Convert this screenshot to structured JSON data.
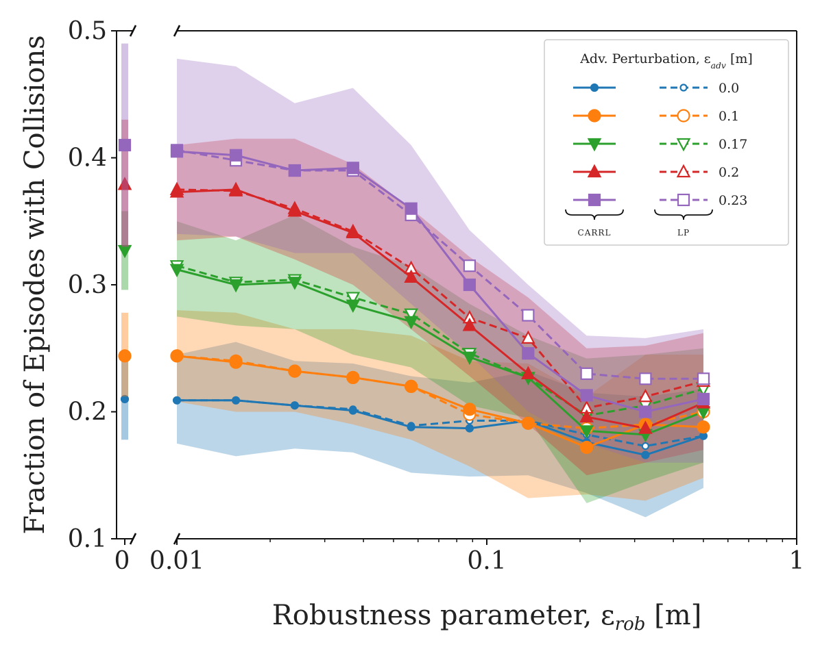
{
  "chart_data": {
    "type": "line",
    "xscale": "log",
    "xlabel": "Robustness parameter, εrob [m]",
    "ylabel": "Fraction of Episodes with Collisions",
    "xlim": [
      0.01,
      1
    ],
    "ylim": [
      0.1,
      0.5
    ],
    "x_ticks": [
      {
        "value": 0.01,
        "label": "0.01"
      },
      {
        "value": 0.1,
        "label": "0.1"
      },
      {
        "value": 1,
        "label": "1"
      }
    ],
    "y_ticks": [
      {
        "value": 0.1,
        "label": "0.1"
      },
      {
        "value": 0.2,
        "label": "0.2"
      },
      {
        "value": 0.3,
        "label": "0.3"
      },
      {
        "value": 0.4,
        "label": "0.4"
      },
      {
        "value": 0.5,
        "label": "0.5"
      }
    ],
    "zero_panel_tick": "0",
    "x": [
      0.01,
      0.0155,
      0.024,
      0.037,
      0.057,
      0.088,
      0.136,
      0.21,
      0.325,
      0.5
    ],
    "legend": {
      "title": "Adv. Perturbation, εadv [m]",
      "group_labels": [
        "CARRL",
        "LP"
      ],
      "placement": "top-right"
    },
    "series": [
      {
        "name": "0.0",
        "color": "#1f77b4",
        "marker": "small-dot",
        "zero_value": 0.21,
        "zero_lo": 0.178,
        "zero_hi": 0.242,
        "carrl": [
          0.209,
          0.209,
          0.205,
          0.201,
          0.188,
          0.187,
          0.193,
          0.176,
          0.166,
          0.181
        ],
        "lp": [
          0.209,
          0.209,
          0.205,
          0.202,
          0.189,
          0.193,
          0.193,
          0.182,
          0.173,
          0.181
        ],
        "lo": [
          0.175,
          0.165,
          0.171,
          0.168,
          0.152,
          0.149,
          0.15,
          0.136,
          0.117,
          0.14
        ],
        "hi": [
          0.245,
          0.255,
          0.24,
          0.238,
          0.228,
          0.223,
          0.232,
          0.215,
          0.212,
          0.218
        ]
      },
      {
        "name": "0.1",
        "color": "#ff7f0e",
        "marker": "circle",
        "zero_value": 0.244,
        "zero_lo": 0.212,
        "zero_hi": 0.278,
        "carrl": [
          0.244,
          0.239,
          0.232,
          0.227,
          0.22,
          0.202,
          0.191,
          0.172,
          0.19,
          0.188
        ],
        "lp": [
          0.244,
          0.24,
          0.232,
          0.227,
          0.22,
          0.198,
          0.191,
          0.187,
          0.19,
          0.2
        ],
        "lo": [
          0.208,
          0.2,
          0.2,
          0.19,
          0.178,
          0.157,
          0.132,
          0.135,
          0.13,
          0.148
        ],
        "hi": [
          0.28,
          0.278,
          0.265,
          0.265,
          0.26,
          0.24,
          0.238,
          0.212,
          0.245,
          0.245
        ]
      },
      {
        "name": "0.17",
        "color": "#2ca02c",
        "marker": "triangle-down",
        "zero_value": 0.327,
        "zero_lo": 0.296,
        "zero_hi": 0.358,
        "carrl": [
          0.312,
          0.3,
          0.302,
          0.284,
          0.271,
          0.243,
          0.227,
          0.185,
          0.182,
          0.2
        ],
        "lp": [
          0.315,
          0.302,
          0.304,
          0.29,
          0.277,
          0.246,
          0.227,
          0.197,
          0.205,
          0.218
        ],
        "lo": [
          0.275,
          0.268,
          0.265,
          0.245,
          0.235,
          0.205,
          0.195,
          0.128,
          0.145,
          0.16
        ],
        "hi": [
          0.35,
          0.335,
          0.355,
          0.33,
          0.315,
          0.285,
          0.26,
          0.242,
          0.245,
          0.25
        ]
      },
      {
        "name": "0.2",
        "color": "#d62728",
        "marker": "triangle-up",
        "zero_value": 0.379,
        "zero_lo": 0.33,
        "zero_hi": 0.43,
        "carrl": [
          0.373,
          0.375,
          0.358,
          0.341,
          0.306,
          0.268,
          0.23,
          0.196,
          0.187,
          0.207
        ],
        "lp": [
          0.375,
          0.374,
          0.36,
          0.342,
          0.313,
          0.274,
          0.258,
          0.203,
          0.212,
          0.224
        ],
        "lo": [
          0.335,
          0.338,
          0.32,
          0.3,
          0.265,
          0.228,
          0.19,
          0.15,
          0.16,
          0.17
        ],
        "hi": [
          0.41,
          0.415,
          0.415,
          0.395,
          0.36,
          0.322,
          0.29,
          0.25,
          0.252,
          0.262
        ]
      },
      {
        "name": "0.23",
        "color": "#9467bd",
        "marker": "square",
        "zero_value": 0.41,
        "zero_lo": 0.33,
        "zero_hi": 0.49,
        "carrl": [
          0.405,
          0.402,
          0.39,
          0.392,
          0.36,
          0.3,
          0.246,
          0.213,
          0.2,
          0.21
        ],
        "lp": [
          0.406,
          0.398,
          0.39,
          0.39,
          0.355,
          0.315,
          0.276,
          0.23,
          0.226,
          0.226
        ],
        "lo": [
          0.34,
          0.338,
          0.325,
          0.325,
          0.285,
          0.245,
          0.2,
          0.175,
          0.16,
          0.16
        ],
        "hi": [
          0.478,
          0.472,
          0.443,
          0.455,
          0.41,
          0.343,
          0.3,
          0.26,
          0.258,
          0.265
        ]
      }
    ]
  }
}
